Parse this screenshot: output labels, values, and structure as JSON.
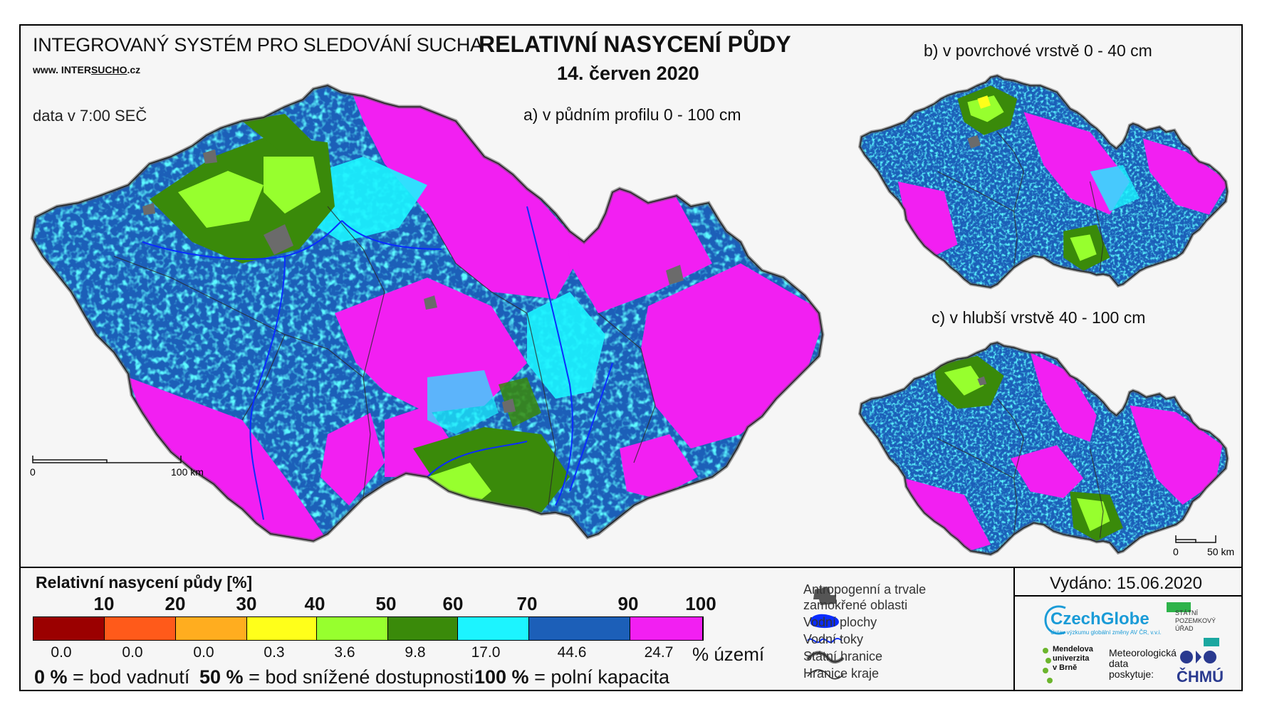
{
  "header": {
    "system_name": "INTEGROVANÝ SYSTÉM PRO SLEDOVÁNÍ SUCHA",
    "url_prefix": "www. INTER",
    "url_underlined": "SUCHO",
    "url_suffix": ".cz",
    "data_time": "data v 7:00 SEČ",
    "title": "RELATIVNÍ NASYCENÍ PŮDY",
    "date": "14. červen 2020"
  },
  "maps": {
    "a_caption": "a) v půdním profilu 0 - 100 cm",
    "b_caption": "b) v povrchové vrstvě 0 - 40 cm",
    "c_caption": "c) v hlubší vrstvě 40 - 100 cm",
    "scale_a": {
      "zero": "0",
      "end": "100 km"
    },
    "scale_c": {
      "zero": "0",
      "end": "50 km"
    }
  },
  "legend": {
    "title": "Relativní nasycení půdy [%]",
    "thresholds": [
      "10",
      "20",
      "30",
      "40",
      "50",
      "60",
      "70",
      "90",
      "100"
    ],
    "classes": [
      {
        "color": "#9b0000",
        "share": "0.0"
      },
      {
        "color": "#ff5a1a",
        "share": "0.0"
      },
      {
        "color": "#ffad1f",
        "share": "0.0"
      },
      {
        "color": "#ffff1a",
        "share": "0.3"
      },
      {
        "color": "#97ff2e",
        "share": "3.6"
      },
      {
        "color": "#3a8a0a",
        "share": "9.8"
      },
      {
        "color": "#1cf4ff",
        "share": "17.0"
      },
      {
        "color": "#1c5fb8",
        "share": "44.6"
      },
      {
        "color": "#f21ff2",
        "share": "24.7"
      }
    ],
    "area_unit": "% území",
    "footnote": {
      "p0_value": "0 %",
      "p0_label": "= bod vadnutí",
      "p50_value": "50 %",
      "p50_label": "= bod snížené dostupnosti",
      "p100_value": "100 %",
      "p100_label": "= polní kapacita"
    }
  },
  "symbol_legend": {
    "anthropogenic_line1": "Antropogenní a trvale",
    "anthropogenic_line2": "zamokřené oblasti",
    "water_bodies": "Vodní plochy",
    "water_courses": "Vodní toky",
    "state_border": "Státní hranice",
    "region_border": "Hranice kraje"
  },
  "issue": {
    "issued": "Vydáno: 15.06.2020"
  },
  "logos": {
    "czechglobe": "CzechGlobe",
    "czechglobe_sub": "Ústav výzkumu globální změny AV ČR, v.v.i.",
    "spu_line1": "STÁTNÍ",
    "spu_line2": "POZEMKOVÝ",
    "spu_line3": "ÚŘAD",
    "mendel_line1": "Mendelova",
    "mendel_line2": "univerzita",
    "mendel_line3": "v Brně",
    "met_line1": "Meteorologická",
    "met_line2": "data",
    "met_line3": "poskytuje:",
    "chmu": "ČHMÚ"
  },
  "colors": {
    "dark_blue": "#1c5fb8",
    "magenta": "#f21ff2",
    "cyan": "#1cf4ff",
    "green": "#3a8a0a",
    "light_green": "#97ff2e",
    "yellow": "#ffff1a",
    "anthropogenic_gray": "#6b6b6b",
    "river_blue": "#0a2cff"
  }
}
